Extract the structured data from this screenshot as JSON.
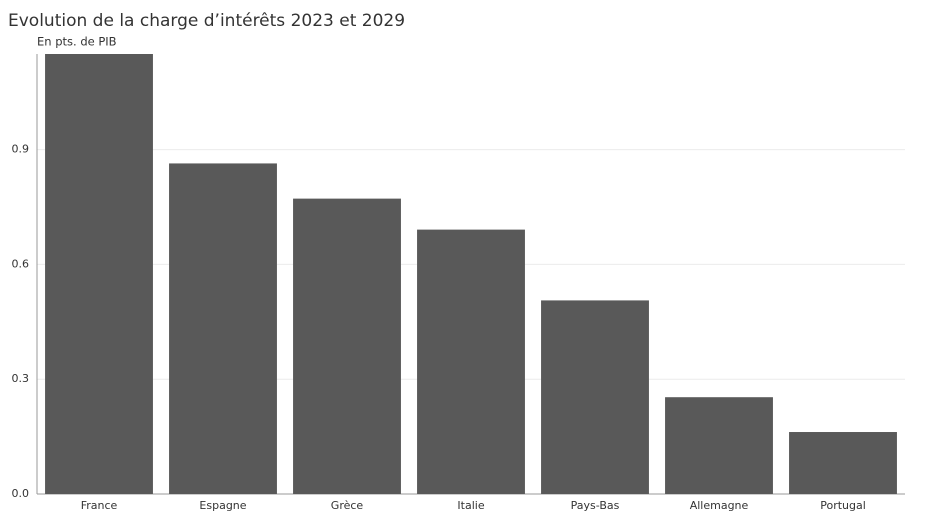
{
  "chart_data": {
    "type": "bar",
    "title": "Evolution de la charge d’intérêts 2023 et 2029",
    "subtitle": "En pts. de PIB",
    "categories": [
      "France",
      "Espagne",
      "Grèce",
      "Italie",
      "Pays-Bas",
      "Allemagne",
      "Portugal"
    ],
    "values": [
      1.15,
      0.864,
      0.772,
      0.691,
      0.506,
      0.253,
      0.162
    ],
    "color": "#595959",
    "ylim": [
      0,
      1.15
    ],
    "yticks": [
      {
        "value": 0,
        "label": "0.0"
      },
      0.3,
      0.6,
      0.9
    ],
    "grid": true
  }
}
